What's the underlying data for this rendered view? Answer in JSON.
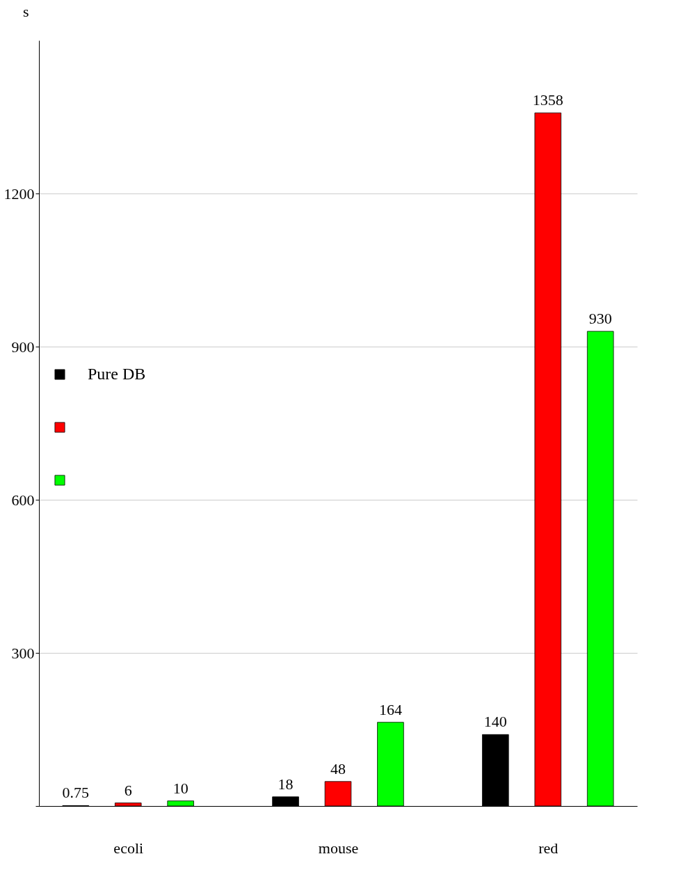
{
  "chart_data": {
    "type": "bar",
    "ylabel": "s",
    "categories": [
      "ecoli",
      "mouse",
      "red"
    ],
    "series": [
      {
        "name": "Pure DB",
        "color": "#000000",
        "values": [
          0.75,
          18,
          140
        ]
      },
      {
        "name": null,
        "color": "#ff0000",
        "values": [
          6,
          48,
          1358
        ]
      },
      {
        "name": null,
        "color": "#00ff00",
        "values": [
          10,
          164,
          930
        ]
      }
    ],
    "ylim": [
      0,
      1500
    ],
    "yticks": [
      {
        "value": 0,
        "label": null
      },
      300,
      600,
      900,
      1200
    ],
    "grid": "y",
    "legend": "left",
    "data_labels": true
  }
}
